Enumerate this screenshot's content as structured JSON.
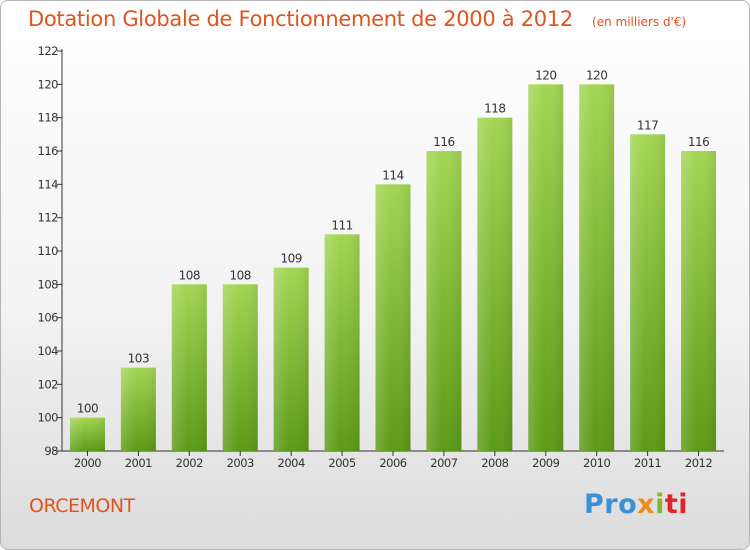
{
  "title": "Dotation Globale de Fonctionnement de 2000 à 2012",
  "subtitle": "(en milliers d'€)",
  "commune": "ORCEMONT",
  "logo": {
    "p1": "Pro",
    "p2": "x",
    "p3": "i",
    "p4": "ti",
    "letters": [
      "P",
      "r",
      "o",
      "x",
      "i",
      "t",
      "i"
    ]
  },
  "colors": {
    "title": "#e0541e",
    "bar_top": "#9fd44e",
    "bar_bottom": "#5c9a16",
    "axis": "#333333"
  },
  "chart_data": {
    "type": "bar",
    "title": "Dotation Globale de Fonctionnement de 2000 à 2012",
    "subtitle": "(en milliers d'€)",
    "categories": [
      "2000",
      "2001",
      "2002",
      "2003",
      "2004",
      "2005",
      "2006",
      "2007",
      "2008",
      "2009",
      "2010",
      "2011",
      "2012"
    ],
    "values": [
      100,
      103,
      108,
      108,
      109,
      111,
      114,
      116,
      118,
      120,
      120,
      117,
      116
    ],
    "ylim": [
      98,
      122
    ],
    "yticks": [
      98,
      100,
      102,
      104,
      106,
      108,
      110,
      112,
      114,
      116,
      118,
      120,
      122
    ],
    "grid": false,
    "legend": "none"
  }
}
